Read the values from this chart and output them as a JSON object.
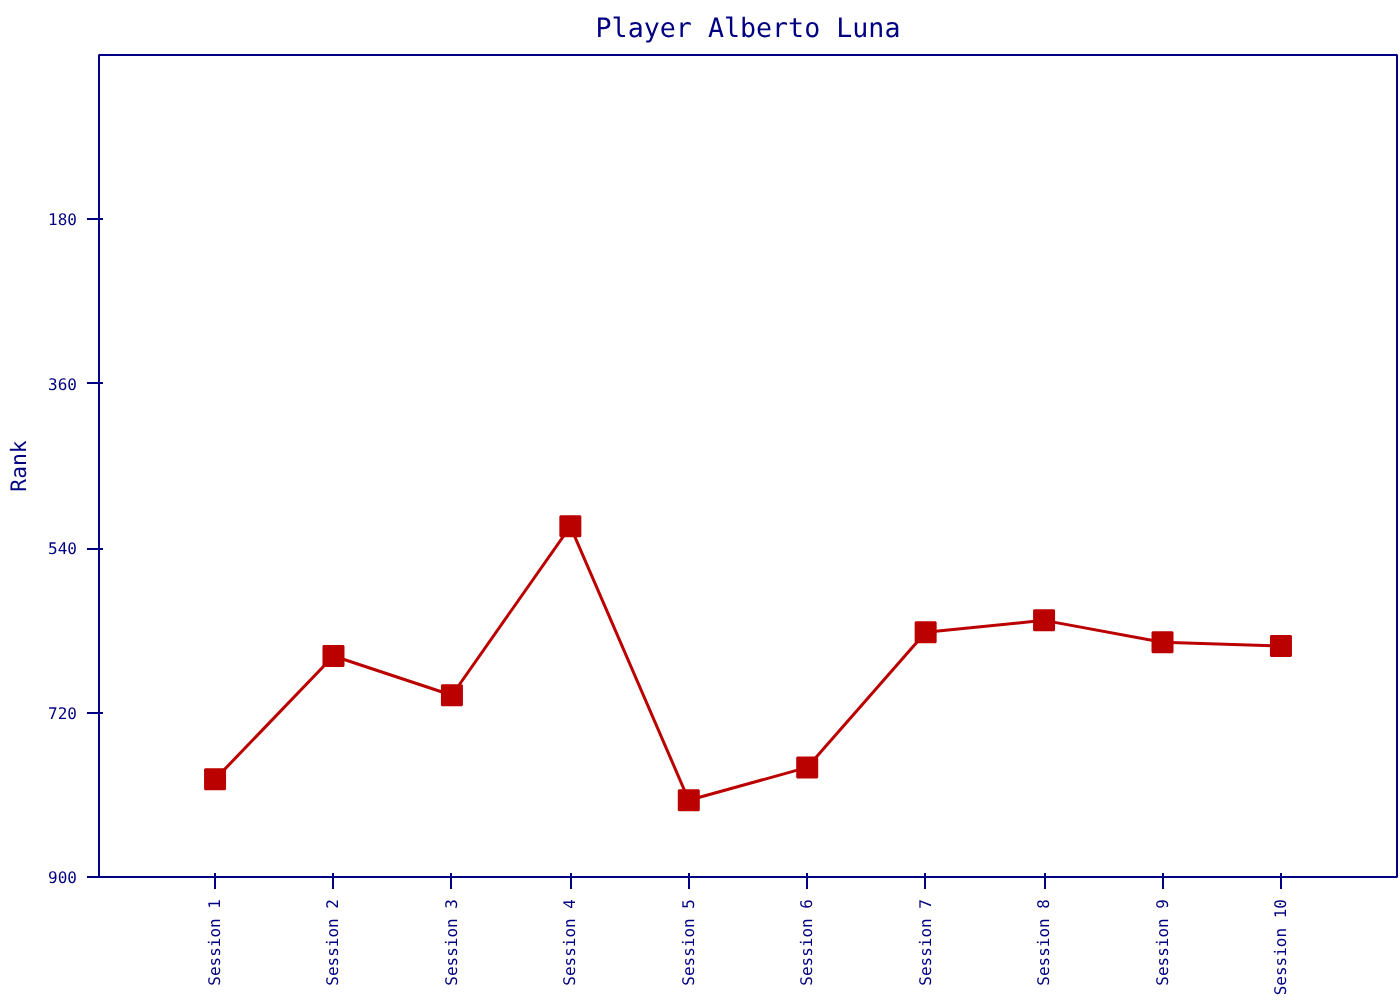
{
  "chart_data": {
    "type": "line",
    "title": "Player Alberto Luna",
    "ylabel": "Rank",
    "categories": [
      "Session 1",
      "Session 2",
      "Session 3",
      "Session 4",
      "Session 5",
      "Session 6",
      "Session 7",
      "Session 8",
      "Session 9",
      "Session 10"
    ],
    "series": [
      {
        "color": "#bb0000",
        "values": [
          793,
          658,
          701,
          516,
          816,
          780,
          632,
          619,
          643,
          647
        ]
      }
    ],
    "ylim": [
      900,
      0
    ],
    "yticks": [
      180,
      360,
      540,
      720,
      900
    ],
    "marker": "square",
    "grid": false
  }
}
